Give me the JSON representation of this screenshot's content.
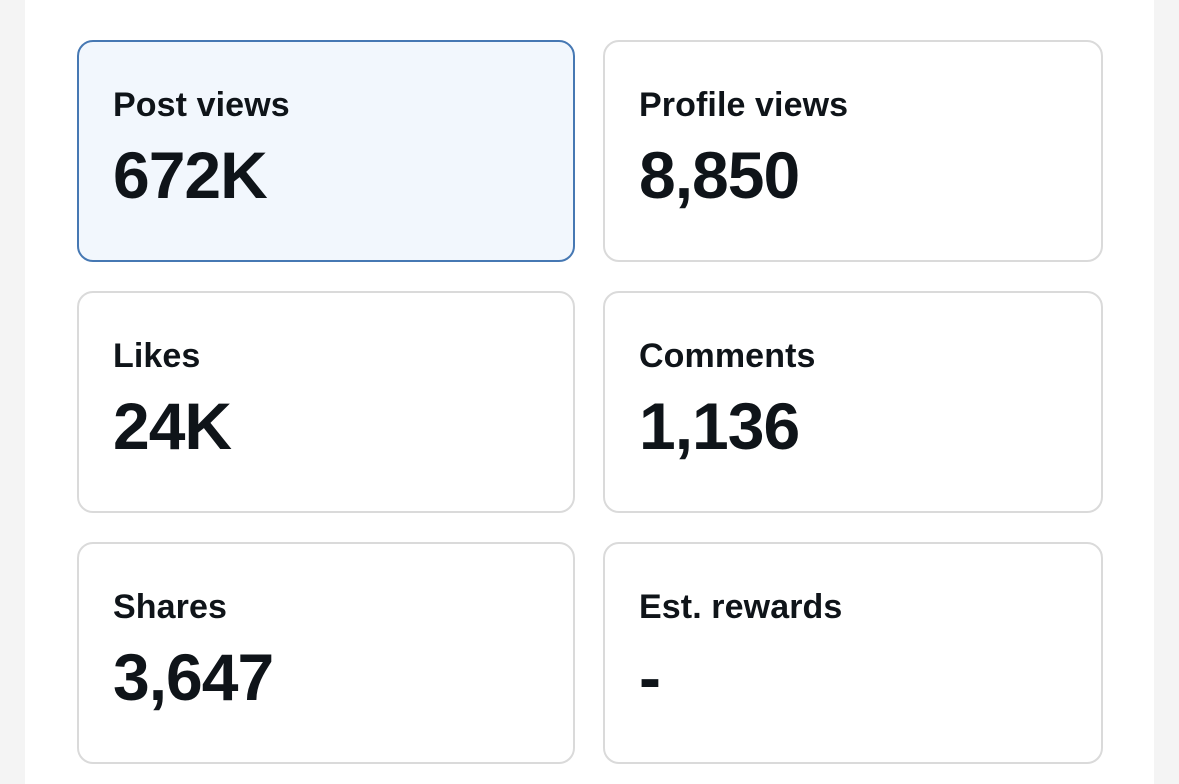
{
  "page": {
    "background": "#ffffff",
    "gutter_color": "#f4f4f4"
  },
  "colors": {
    "text": "#0f1419",
    "card_border": "#dadada",
    "selected_border": "#4678b3",
    "selected_bg": "#f2f7fd"
  },
  "stats": {
    "cards": [
      {
        "label": "Post views",
        "value": "672K",
        "selected": true
      },
      {
        "label": "Profile views",
        "value": "8,850",
        "selected": false
      },
      {
        "label": "Likes",
        "value": "24K",
        "selected": false
      },
      {
        "label": "Comments",
        "value": "1,136",
        "selected": false
      },
      {
        "label": "Shares",
        "value": "3,647",
        "selected": false
      },
      {
        "label": "Est. rewards",
        "value": "-",
        "selected": false
      }
    ]
  }
}
